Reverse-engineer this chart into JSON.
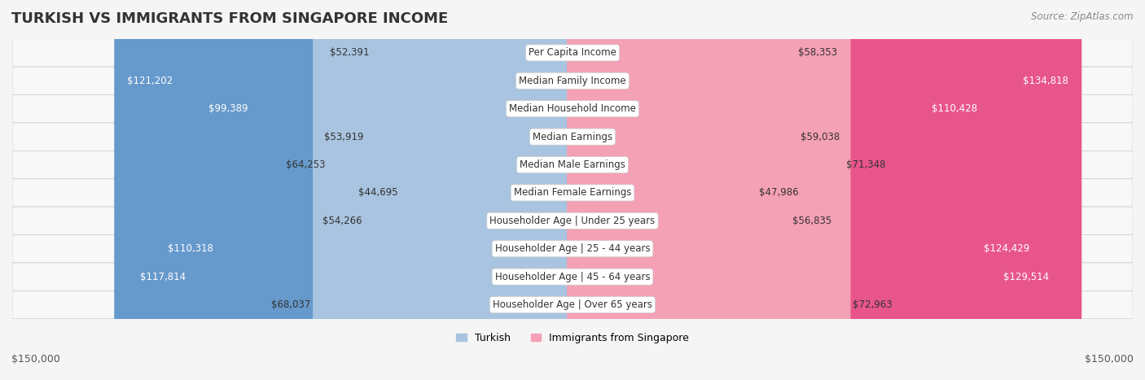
{
  "title": "TURKISH VS IMMIGRANTS FROM SINGAPORE INCOME",
  "source": "Source: ZipAtlas.com",
  "categories": [
    "Per Capita Income",
    "Median Family Income",
    "Median Household Income",
    "Median Earnings",
    "Median Male Earnings",
    "Median Female Earnings",
    "Householder Age | Under 25 years",
    "Householder Age | 25 - 44 years",
    "Householder Age | 45 - 64 years",
    "Householder Age | Over 65 years"
  ],
  "turkish_values": [
    52391,
    121202,
    99389,
    53919,
    64253,
    44695,
    54266,
    110318,
    117814,
    68037
  ],
  "singapore_values": [
    58353,
    134818,
    110428,
    59038,
    71348,
    47986,
    56835,
    124429,
    129514,
    72963
  ],
  "turkish_labels": [
    "$52,391",
    "$121,202",
    "$99,389",
    "$53,919",
    "$64,253",
    "$44,695",
    "$54,266",
    "$110,318",
    "$117,814",
    "$68,037"
  ],
  "singapore_labels": [
    "$58,353",
    "$134,818",
    "$110,428",
    "$59,038",
    "$71,348",
    "$47,986",
    "$56,835",
    "$124,429",
    "$129,514",
    "$72,963"
  ],
  "turkish_color_light": "#a8c4e0",
  "turkish_color_dark": "#6699cc",
  "singapore_color_light": "#f4a0b5",
  "singapore_color_dark": "#e8558a",
  "max_value": 150000,
  "bg_color": "#f5f5f5",
  "row_bg": "#ffffff",
  "row_bg_alt": "#f0f0f0",
  "label_threshold": 90000,
  "legend_turkish": "Turkish",
  "legend_singapore": "Immigrants from Singapore",
  "xlabel_left": "$150,000",
  "xlabel_right": "$150,000"
}
